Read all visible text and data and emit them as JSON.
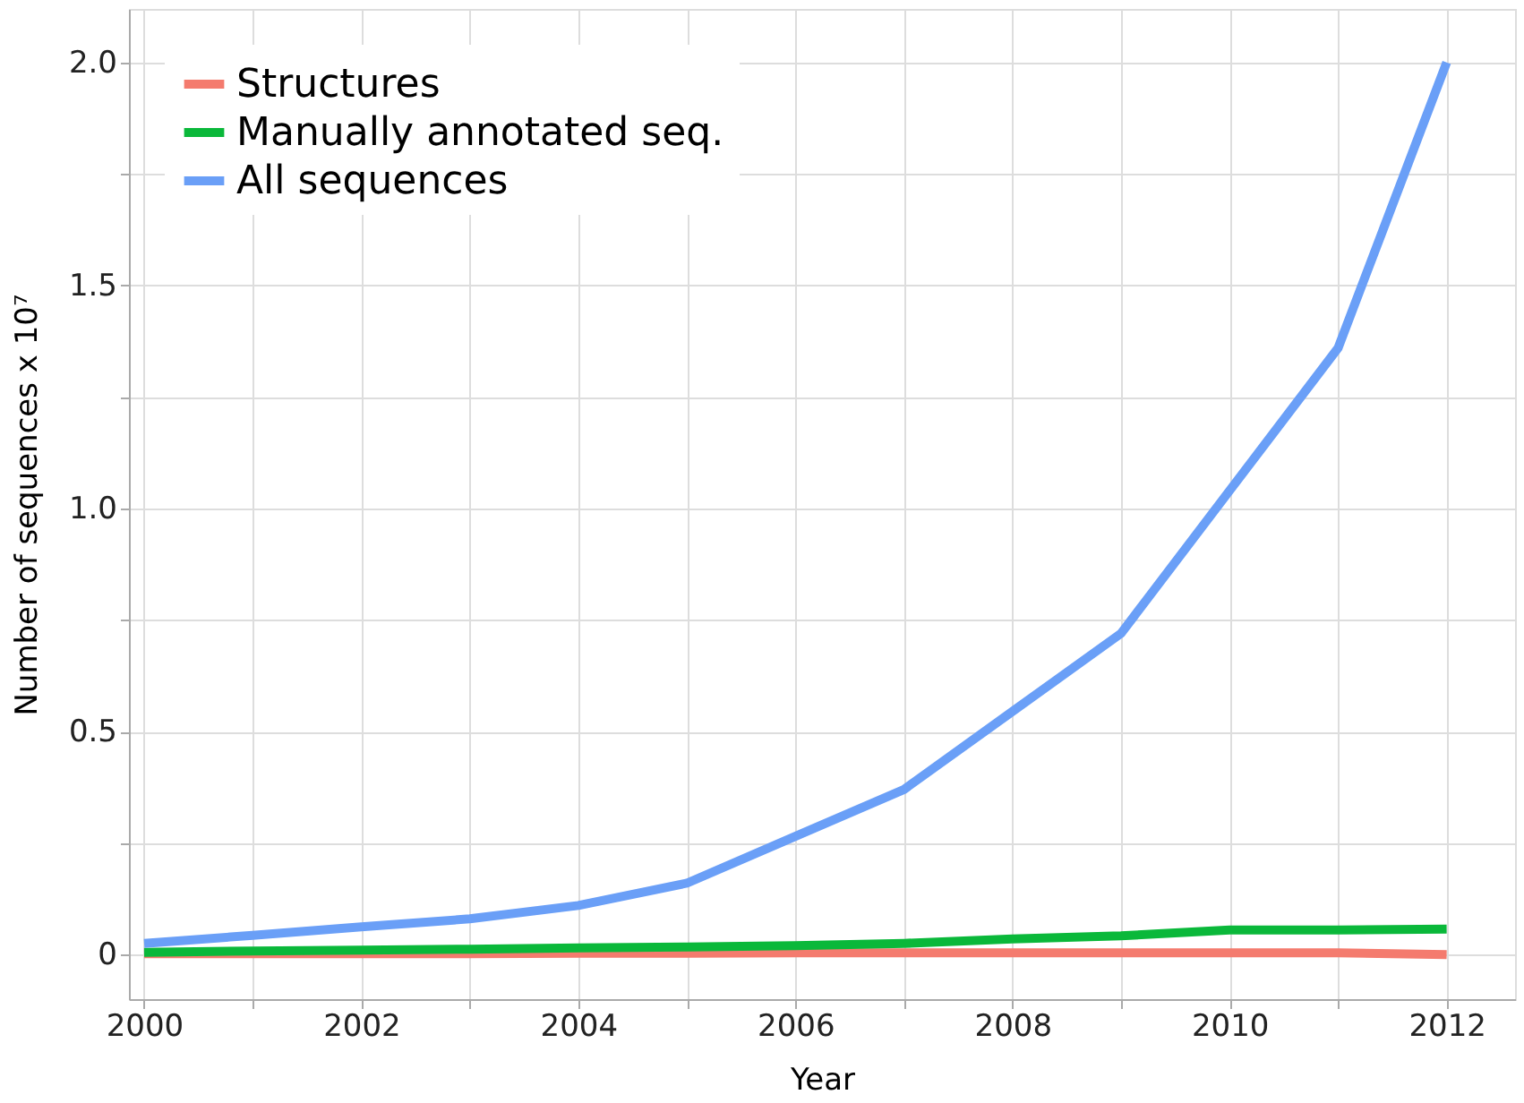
{
  "chart_data": {
    "type": "line",
    "xlabel": "Year",
    "ylabel": "Number of sequences x 10⁷",
    "x": [
      2000,
      2001,
      2002,
      2003,
      2004,
      2005,
      2006,
      2007,
      2008,
      2009,
      2010,
      2011,
      2012
    ],
    "series": [
      {
        "name": "Structures",
        "color": "#f47b6e",
        "values": [
          0.002,
          0.002,
          0.002,
          0.002,
          0.003,
          0.003,
          0.004,
          0.004,
          0.004,
          0.004,
          0.004,
          0.004,
          0.0
        ]
      },
      {
        "name": "Manually annotated seq.",
        "color": "#0ab83a",
        "values": [
          0.005,
          0.008,
          0.01,
          0.012,
          0.015,
          0.017,
          0.02,
          0.025,
          0.035,
          0.042,
          0.055,
          0.055,
          0.057
        ]
      },
      {
        "name": "All sequences",
        "color": "#6a9ff7",
        "values": [
          0.025,
          0.043,
          0.062,
          0.08,
          0.11,
          0.16,
          0.265,
          0.37,
          0.545,
          0.72,
          1.04,
          1.36,
          2.0
        ]
      }
    ],
    "xlim": [
      1999.86,
      2012.63
    ],
    "ylim": [
      -0.1,
      2.12
    ],
    "xticks": [
      2000,
      {
        "value": 2001,
        "label": null
      },
      2002,
      {
        "value": 2003,
        "label": null
      },
      2004,
      {
        "value": 2005,
        "label": null
      },
      2006,
      {
        "value": 2007,
        "label": null
      },
      2008,
      {
        "value": 2009,
        "label": null
      },
      2010,
      {
        "value": 2011,
        "label": null
      },
      2012
    ],
    "yticks": [
      {
        "value": 0,
        "label": "0"
      },
      {
        "value": 0.25,
        "label": null
      },
      {
        "value": 0.5,
        "label": "0.5"
      },
      {
        "value": 0.75,
        "label": null
      },
      {
        "value": 1.0,
        "label": "1.0"
      },
      {
        "value": 1.25,
        "label": null
      },
      {
        "value": 1.5,
        "label": "1.5"
      },
      {
        "value": 1.75,
        "label": null
      },
      {
        "value": 2.0,
        "label": "2.0"
      }
    ],
    "grid": true,
    "legend": "top left",
    "line_style": "solid"
  }
}
